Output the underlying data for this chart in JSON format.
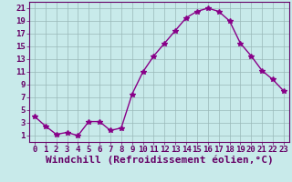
{
  "x": [
    0,
    1,
    2,
    3,
    4,
    5,
    6,
    7,
    8,
    9,
    10,
    11,
    12,
    13,
    14,
    15,
    16,
    17,
    18,
    19,
    20,
    21,
    22,
    23
  ],
  "y": [
    4.0,
    2.5,
    1.2,
    1.5,
    1.0,
    3.2,
    3.2,
    1.8,
    2.2,
    7.5,
    11.0,
    13.5,
    15.5,
    17.5,
    19.5,
    20.5,
    21.0,
    20.5,
    19.0,
    15.5,
    13.5,
    11.2,
    9.8,
    8.0
  ],
  "line_color": "#880088",
  "marker": "*",
  "marker_size": 4,
  "background_color": "#c8eaea",
  "grid_color": "#9ab8b8",
  "xlabel": "Windchill (Refroidissement éolien,°C)",
  "ylabel": "",
  "xlim": [
    -0.5,
    23.5
  ],
  "ylim": [
    0,
    22
  ],
  "yticks": [
    1,
    3,
    5,
    7,
    9,
    11,
    13,
    15,
    17,
    19,
    21
  ],
  "xticks": [
    0,
    1,
    2,
    3,
    4,
    5,
    6,
    7,
    8,
    9,
    10,
    11,
    12,
    13,
    14,
    15,
    16,
    17,
    18,
    19,
    20,
    21,
    22,
    23
  ],
  "font_color": "#660066",
  "tick_fontsize": 6.5,
  "xlabel_fontsize": 8
}
